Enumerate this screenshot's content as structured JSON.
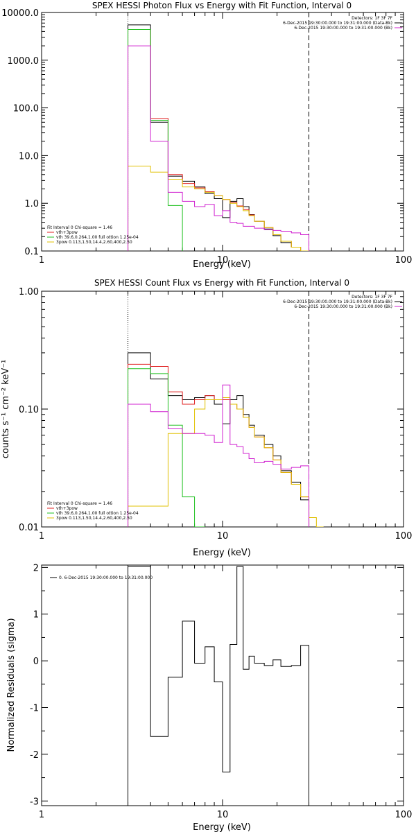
{
  "chart_data": [
    {
      "type": "line",
      "title": "SPEX HESSI Photon Flux vs Energy with Fit Function, Interval 0",
      "xlabel": "Energy (keV)",
      "ylabel": "",
      "xscale": "log",
      "yscale": "log",
      "xlim": [
        1,
        100
      ],
      "ylim": [
        0.1,
        10000
      ],
      "xtick_labels": [
        "1",
        "10",
        "100"
      ],
      "ytick_values": [
        0.1,
        1,
        10,
        100,
        1000,
        10000
      ],
      "ytick_labels": [
        "0.1",
        "1.0",
        "10.0",
        "100.0",
        "1000.0",
        "10000.0"
      ],
      "vlines": [
        {
          "x": 3,
          "style": "dotted",
          "color": "#000000"
        },
        {
          "x": 30,
          "style": "dashed",
          "color": "#000000"
        }
      ],
      "legend_top_right": [
        {
          "text": "Detectors: 1F 3F 7F",
          "color": ""
        },
        {
          "text": "6-Dec-2015 19:30:00.000 to 19:31:00.000 (Data-Bk)",
          "color": "#000000"
        },
        {
          "text": "6-Dec-2015 19:30:00.000 to 19:31:00.000 (Bk)",
          "color": "#d020d0"
        }
      ],
      "legend_bottom_left": [
        {
          "text": "Fit Interval 0   Chi-square = 1.46",
          "color": ""
        },
        {
          "text": "vth+3pow",
          "color": "#e02020"
        },
        {
          "text": "vth 39.6,0.264,1.00  full ottion 1.25e-04",
          "color": "#20c020"
        },
        {
          "text": "3pow 0.113,1.50,14.4,2.60,400,2.50",
          "color": "#e0c000"
        }
      ],
      "series": [
        {
          "color": "#000000",
          "edges": [
            3,
            4,
            5,
            6,
            7,
            8,
            9,
            10,
            11,
            12,
            13,
            14,
            15,
            17,
            19,
            21,
            24,
            27,
            30
          ],
          "values": [
            5500,
            50,
            3.7,
            2.9,
            2.2,
            1.6,
            1.25,
            0.5,
            1.1,
            1.25,
            0.85,
            0.58,
            0.42,
            0.29,
            0.21,
            0.15,
            0.12,
            0.1
          ]
        },
        {
          "color": "#e02020",
          "edges": [
            3,
            4,
            5,
            6,
            7,
            8,
            9,
            10,
            11,
            12,
            13,
            14,
            15,
            17,
            19,
            21,
            24,
            27,
            30
          ],
          "values": [
            4400,
            60,
            4.0,
            2.6,
            2.1,
            1.75,
            1.45,
            1.2,
            1.05,
            0.88,
            0.74,
            0.57,
            0.42,
            0.31,
            0.22,
            0.16,
            0.12,
            0.09
          ]
        },
        {
          "color": "#20c020",
          "edges": [
            3,
            4,
            5,
            6
          ],
          "values": [
            4400,
            55,
            0.9
          ]
        },
        {
          "color": "#e0c000",
          "edges": [
            3,
            4,
            5,
            6,
            7,
            8,
            9,
            10,
            11,
            12,
            13,
            14,
            15,
            17,
            19,
            21,
            24,
            27,
            30
          ],
          "values": [
            6,
            4.5,
            3.2,
            2.2,
            2.0,
            1.7,
            1.45,
            1.2,
            1.0,
            0.85,
            0.7,
            0.55,
            0.42,
            0.31,
            0.22,
            0.16,
            0.12,
            0.09
          ]
        },
        {
          "color": "#d020d0",
          "edges": [
            3,
            4,
            5,
            6,
            7,
            8,
            9,
            10,
            11,
            12,
            13,
            14,
            15,
            17,
            19,
            21,
            24,
            27,
            30
          ],
          "values": [
            2000,
            20,
            1.7,
            1.1,
            0.85,
            0.95,
            0.55,
            0.7,
            0.4,
            0.38,
            0.33,
            0.33,
            0.3,
            0.28,
            0.27,
            0.26,
            0.24,
            0.22
          ]
        }
      ]
    },
    {
      "type": "line",
      "title": "SPEX HESSI Count Flux vs Energy with Fit Function, Interval 0",
      "xlabel": "Energy (keV)",
      "ylabel": "counts s⁻¹ cm⁻² keV⁻¹",
      "xscale": "log",
      "yscale": "log",
      "xlim": [
        1,
        100
      ],
      "ylim": [
        0.01,
        1
      ],
      "xtick_labels": [
        "1",
        "10",
        "100"
      ],
      "ytick_values": [
        0.01,
        0.1,
        1
      ],
      "ytick_labels": [
        "0.01",
        "0.10",
        "1.00"
      ],
      "vlines": [
        {
          "x": 3,
          "style": "dotted",
          "color": "#000000"
        },
        {
          "x": 30,
          "style": "dashed",
          "color": "#000000"
        }
      ],
      "legend_top_right": [
        {
          "text": "Detectors: 1F 3F 7F",
          "color": ""
        },
        {
          "text": "6-Dec-2015 19:30:00.000 to 19:31:00.000 (Data-Bk)",
          "color": "#000000"
        },
        {
          "text": "6-Dec-2015 19:30:00.000 to 19:31:00.000 (Bk)",
          "color": "#d020d0"
        }
      ],
      "legend_bottom_left": [
        {
          "text": "Fit Interval 0   Chi-square = 1.46",
          "color": ""
        },
        {
          "text": "vth+3pow",
          "color": "#e02020"
        },
        {
          "text": "vth 39.6,0.264,1.00  full ottion 1.25e-04",
          "color": "#20c020"
        },
        {
          "text": "3pow 0.113,1.50,14.4,2.60,400,2.50",
          "color": "#e0c000"
        }
      ],
      "series": [
        {
          "color": "#000000",
          "edges": [
            3,
            4,
            5,
            6,
            7,
            8,
            9,
            10,
            11,
            12,
            13,
            14,
            15,
            17,
            19,
            21,
            24,
            27,
            30
          ],
          "values": [
            0.3,
            0.18,
            0.13,
            0.12,
            0.125,
            0.13,
            0.11,
            0.075,
            0.12,
            0.13,
            0.09,
            0.073,
            0.06,
            0.05,
            0.04,
            0.03,
            0.024,
            0.017
          ]
        },
        {
          "color": "#e02020",
          "edges": [
            3,
            4,
            5,
            6,
            7,
            8,
            9,
            10,
            11,
            12,
            13,
            14,
            15,
            17,
            19,
            21,
            24,
            27,
            30
          ],
          "values": [
            0.24,
            0.23,
            0.14,
            0.11,
            0.12,
            0.13,
            0.12,
            0.12,
            0.11,
            0.1,
            0.085,
            0.07,
            0.058,
            0.047,
            0.037,
            0.029,
            0.023,
            0.018
          ]
        },
        {
          "color": "#20c020",
          "edges": [
            3,
            4,
            5,
            6,
            7,
            8
          ],
          "values": [
            0.22,
            0.2,
            0.073,
            0.018,
            0.008
          ]
        },
        {
          "color": "#e0c000",
          "edges": [
            3,
            4,
            5,
            6,
            7,
            8,
            9,
            10,
            11,
            12,
            13,
            14,
            15,
            17,
            19,
            21,
            24,
            27,
            30,
            33,
            36
          ],
          "values": [
            0.015,
            0.015,
            0.062,
            0.062,
            0.1,
            0.12,
            0.12,
            0.125,
            0.11,
            0.1,
            0.085,
            0.07,
            0.058,
            0.047,
            0.037,
            0.029,
            0.023,
            0.018,
            0.012,
            0.01
          ]
        },
        {
          "color": "#d020d0",
          "edges": [
            3,
            4,
            5,
            6,
            7,
            8,
            9,
            10,
            11,
            12,
            13,
            14,
            15,
            17,
            19,
            21,
            24,
            27,
            30
          ],
          "values": [
            0.11,
            0.095,
            0.068,
            0.062,
            0.062,
            0.06,
            0.052,
            0.16,
            0.05,
            0.048,
            0.042,
            0.038,
            0.035,
            0.036,
            0.034,
            0.031,
            0.032,
            0.033
          ]
        }
      ]
    },
    {
      "type": "line",
      "title": "",
      "xlabel": "Energy (keV)",
      "ylabel": "Normalized Residuals (sigma)",
      "xscale": "log",
      "yscale": "linear",
      "xlim": [
        1,
        100
      ],
      "ylim": [
        -3.1,
        2.05
      ],
      "xtick_labels": [
        "1",
        "10",
        "100"
      ],
      "ytick_values": [
        -3,
        -2,
        -1,
        0,
        1,
        2
      ],
      "ytick_labels": [
        "-3",
        "-2",
        "-1",
        "0",
        "1",
        "2"
      ],
      "legend_top_left": [
        {
          "text": "0.  6-Dec-2015 19:30:00.000 to 19:31:00.000",
          "color": "#000000"
        }
      ],
      "series": [
        {
          "color": "#000000",
          "edges": [
            3,
            4,
            5,
            6,
            7,
            8,
            9,
            10,
            11,
            12,
            13,
            14,
            15,
            17,
            19,
            21,
            24,
            27,
            30
          ],
          "values": [
            2.02,
            -1.62,
            -0.35,
            0.85,
            -0.05,
            0.3,
            -0.45,
            -2.38,
            0.35,
            2.02,
            -0.18,
            0.1,
            -0.05,
            -0.1,
            0.02,
            -0.12,
            -0.1,
            0.33
          ],
          "drop_to_bottom": true
        }
      ]
    }
  ]
}
